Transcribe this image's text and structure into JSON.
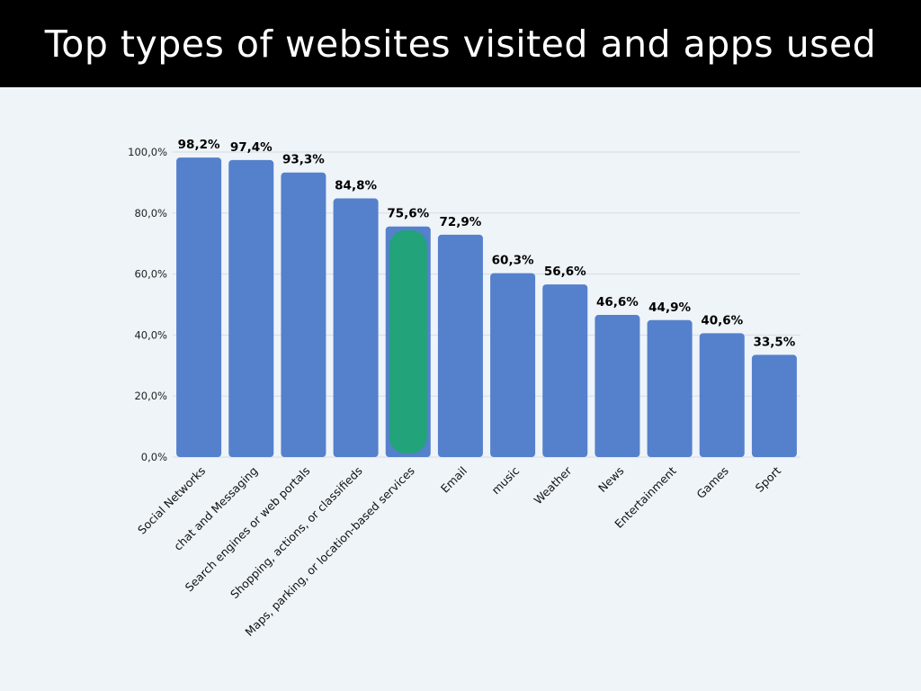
{
  "page": {
    "title": "Top types of websites visited and apps used"
  },
  "chart_data": {
    "type": "bar",
    "title": "Top types of websites visited and apps used",
    "xlabel": "",
    "ylabel": "",
    "ylim": [
      0,
      100
    ],
    "yticks": [
      "0,0%",
      "20,0%",
      "40,0%",
      "60,0%",
      "80,0%",
      "100,0%"
    ],
    "grid": true,
    "categories": [
      "Social Networks",
      "chat and Messaging",
      "Search engines or web portals",
      "Shopping, actions, or classifieds",
      "Maps, parking, or location-based services",
      "Email",
      "music",
      "Weather",
      "News",
      "Entertainment",
      "Games",
      "Sport"
    ],
    "values": [
      98.2,
      97.4,
      93.3,
      84.8,
      75.6,
      72.9,
      60.3,
      56.6,
      46.6,
      44.9,
      40.6,
      33.5
    ],
    "value_labels": [
      "98,2%",
      "97,4%",
      "93,3%",
      "84,8%",
      "75,6%",
      "72,9%",
      "60,3%",
      "56,6%",
      "46,6%",
      "44,9%",
      "40,6%",
      "33,5%"
    ],
    "highlight_index": 4,
    "colors": {
      "bar": "#5580cc",
      "highlight_fill": "#22a37a",
      "grid": "#d5dce3",
      "background": "#eef4f8"
    }
  }
}
